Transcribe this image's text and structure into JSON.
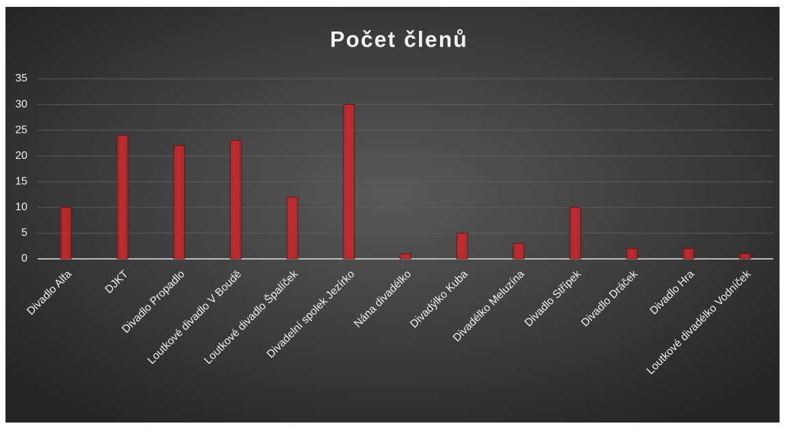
{
  "chart_data": {
    "type": "bar",
    "title": "Počet členů",
    "categories": [
      "Divadlo Alfa",
      "DJKT",
      "Divadlo Propadlo",
      "Loutkové divadlo V Boudě",
      "Loutkové divadlo Špalíček",
      "Divadelní spolek Jezírko",
      "Nána divadélko",
      "Divadýlko Kuba",
      "Divadélko Meluzína",
      "Divadlo Střípek",
      "Divadlo Dráček",
      "Divadlo Hra",
      "Loutkové divadélko Vodníček"
    ],
    "values": [
      10,
      24,
      22,
      23,
      12,
      30,
      1,
      5,
      3,
      10,
      2,
      2,
      1
    ],
    "color": "#c8282c",
    "ylim": [
      0,
      35
    ],
    "yticks": [
      0,
      5,
      10,
      15,
      20,
      25,
      30,
      35
    ],
    "grid": true
  }
}
